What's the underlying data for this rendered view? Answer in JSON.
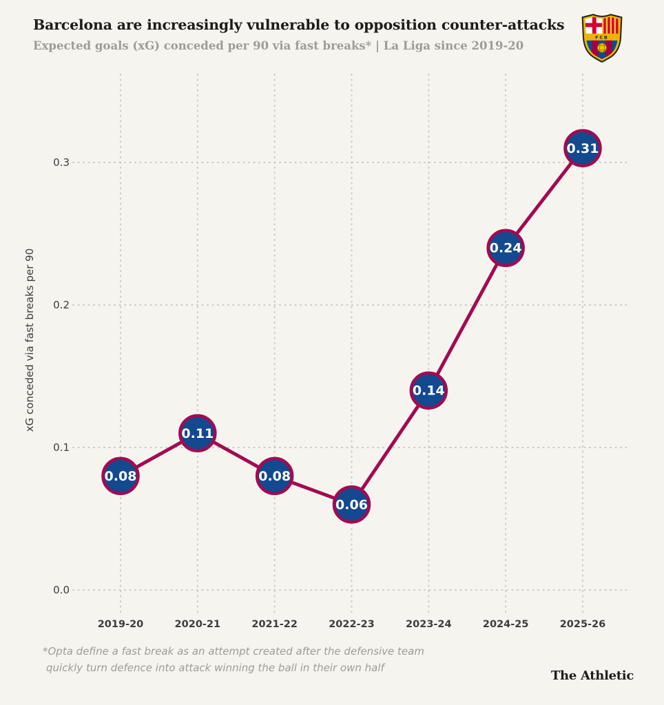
{
  "header": {
    "title": "Barcelona are increasingly vulnerable to opposition counter-attacks",
    "subtitle": "Expected goals (xG) conceded per 90 via fast breaks* | La Liga since 2019-20",
    "crest_text": "FCB"
  },
  "chart_data": {
    "type": "line",
    "title": "Barcelona are increasingly vulnerable to opposition counter-attacks",
    "subtitle": "Expected goals (xG) conceded per 90 via fast breaks* | La Liga since 2019-20",
    "categories": [
      "2019-20",
      "2020-21",
      "2021-22",
      "2022-23",
      "2023-24",
      "2024-25",
      "2025-26"
    ],
    "series": [
      {
        "name": "xG conceded via fast breaks per 90",
        "values": [
          0.08,
          0.11,
          0.08,
          0.06,
          0.14,
          0.24,
          0.31
        ],
        "point_labels": [
          "0.08",
          "0.11",
          "0.08",
          "0.06",
          "0.14",
          "0.24",
          "0.31"
        ]
      }
    ],
    "xlabel": "",
    "ylabel": "xG conceded via fast breaks per 90",
    "ylim": [
      0,
      0.345
    ],
    "yticks": [
      {
        "label": "0.0",
        "value": 0.0
      },
      {
        "label": "0.1",
        "value": 0.1
      },
      {
        "label": "0.2",
        "value": 0.2
      },
      {
        "label": "0.3",
        "value": 0.3
      }
    ],
    "grid": "dotted both axes",
    "legend": "none",
    "colors": {
      "line": "#a30a51",
      "marker_fill": "#13498e",
      "marker_border": "#a30a51",
      "point_label": "#ffffff",
      "grid": "#c9c8c0",
      "axis_text": "#3c3c3a",
      "background": "#f5f4ef"
    }
  },
  "footer": {
    "footnote_line1": "*Opta define a fast break as an attempt created after the defensive team",
    "footnote_line2": "quickly turn defence into attack winning the ball in their own half",
    "brand": "The Athletic"
  }
}
